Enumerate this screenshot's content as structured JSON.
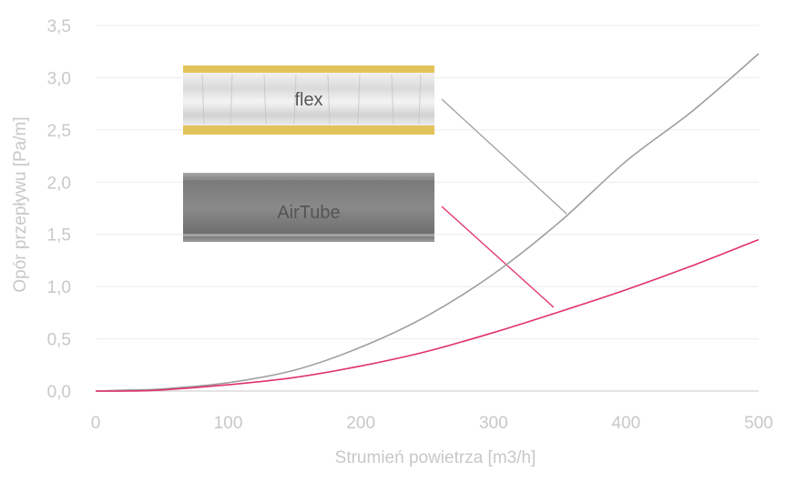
{
  "chart_data": {
    "type": "line",
    "xlabel": "Strumień powietrza [m3/h]",
    "ylabel": "Opór przepływu [Pa/m]",
    "xlim": [
      0,
      500
    ],
    "ylim": [
      0,
      3.5
    ],
    "x_ticks": [
      "0",
      "100",
      "200",
      "300",
      "400",
      "500"
    ],
    "y_ticks": [
      "0,0",
      "0,5",
      "1,0",
      "1,5",
      "2,0",
      "2,5",
      "3,0",
      "3,5"
    ],
    "grid": "horizontal",
    "series": [
      {
        "name": "flex",
        "color": "#9e9e9e",
        "x": [
          0,
          25,
          50,
          100,
          150,
          200,
          250,
          300,
          350,
          400,
          450,
          500
        ],
        "y": [
          0.0,
          0.01,
          0.02,
          0.08,
          0.2,
          0.42,
          0.72,
          1.12,
          1.62,
          2.2,
          2.68,
          3.23
        ]
      },
      {
        "name": "AirTube",
        "color": "#e0306f",
        "x": [
          0,
          25,
          50,
          100,
          150,
          200,
          250,
          300,
          350,
          400,
          450,
          500
        ],
        "y": [
          0.0,
          0.0,
          0.01,
          0.06,
          0.13,
          0.24,
          0.38,
          0.56,
          0.76,
          0.97,
          1.2,
          1.45
        ]
      }
    ],
    "labels": {
      "flex": "flex",
      "airtube": "AirTube"
    }
  }
}
